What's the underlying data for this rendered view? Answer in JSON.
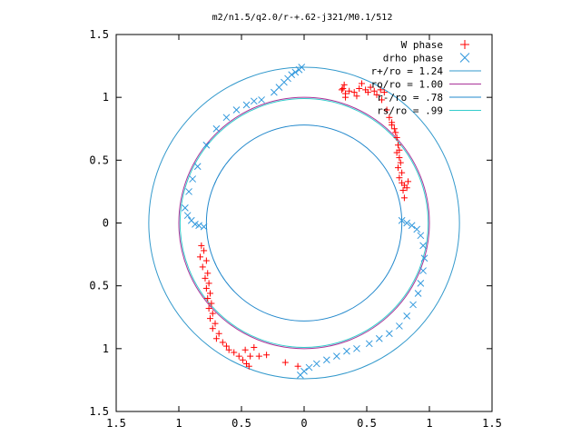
{
  "chart_data": {
    "type": "scatter",
    "title": "m2/n1.5/q2.0/r-+.62-j321/M0.1/512",
    "xlim": [
      -1.5,
      1.5
    ],
    "ylim": [
      -1.5,
      1.5
    ],
    "x_ticks": [
      {
        "value": -1.5,
        "label": "1.5"
      },
      {
        "value": -1.0,
        "label": "1"
      },
      {
        "value": -0.5,
        "label": "0.5"
      },
      {
        "value": 0.0,
        "label": "0"
      },
      {
        "value": 0.5,
        "label": "0.5"
      },
      {
        "value": 1.0,
        "label": "1"
      },
      {
        "value": 1.5,
        "label": "1.5"
      }
    ],
    "y_ticks": [
      {
        "value": 1.5,
        "label": "1.5"
      },
      {
        "value": 1.0,
        "label": "1"
      },
      {
        "value": 0.5,
        "label": "0.5"
      },
      {
        "value": 0.0,
        "label": "0"
      },
      {
        "value": -0.5,
        "label": "0.5"
      },
      {
        "value": -1.0,
        "label": "1"
      },
      {
        "value": -1.5,
        "label": "1.5"
      }
    ],
    "grid": false,
    "legend_position": "top-right",
    "legend": [
      {
        "label": "W phase",
        "marker": "+",
        "color": "#ff0000"
      },
      {
        "label": "drho phase",
        "marker": "x",
        "color": "#3399dd"
      },
      {
        "label": "r+/ro = 1.24",
        "marker": "line",
        "color": "#3399cc"
      },
      {
        "label": "ro/ro = 1.00",
        "marker": "line",
        "color": "#aa3399"
      },
      {
        "label": "r-/ro = .78",
        "marker": "line",
        "color": "#2288cc"
      },
      {
        "label": "rs/ro = .99",
        "marker": "line",
        "color": "#33cccc"
      }
    ],
    "circles": [
      {
        "r": 1.24,
        "color": "#3399cc"
      },
      {
        "r": 1.0,
        "color": "#aa3399"
      },
      {
        "r": 0.78,
        "color": "#2288cc"
      },
      {
        "r": 0.99,
        "color": "#33cccc"
      }
    ],
    "series": [
      {
        "name": "W phase",
        "marker": "+",
        "color": "#ff0000",
        "points": [
          [
            0.31,
            1.07
          ],
          [
            0.33,
            1.03
          ],
          [
            0.32,
            1.1
          ],
          [
            0.3,
            1.06
          ],
          [
            0.33,
            1.0
          ],
          [
            0.36,
            1.05
          ],
          [
            0.4,
            1.04
          ],
          [
            0.42,
            1.01
          ],
          [
            0.44,
            1.07
          ],
          [
            0.46,
            1.11
          ],
          [
            0.49,
            1.06
          ],
          [
            0.51,
            1.04
          ],
          [
            0.53,
            1.08
          ],
          [
            0.56,
            1.05
          ],
          [
            0.58,
            1.02
          ],
          [
            0.61,
            1.06
          ],
          [
            0.64,
            1.04
          ],
          [
            0.62,
            0.98
          ],
          [
            0.66,
            0.9
          ],
          [
            0.68,
            0.84
          ],
          [
            0.7,
            0.8
          ],
          [
            0.72,
            0.75
          ],
          [
            0.73,
            0.72
          ],
          [
            0.7,
            0.78
          ],
          [
            0.74,
            0.68
          ],
          [
            0.75,
            0.62
          ],
          [
            0.76,
            0.58
          ],
          [
            0.74,
            0.56
          ],
          [
            0.76,
            0.52
          ],
          [
            0.77,
            0.48
          ],
          [
            0.75,
            0.44
          ],
          [
            0.78,
            0.4
          ],
          [
            0.76,
            0.36
          ],
          [
            0.78,
            0.32
          ],
          [
            0.8,
            0.3
          ],
          [
            0.82,
            0.28
          ],
          [
            0.79,
            0.26
          ],
          [
            0.83,
            0.33
          ],
          [
            0.8,
            0.2
          ],
          [
            -0.82,
            -0.18
          ],
          [
            -0.8,
            -0.22
          ],
          [
            -0.83,
            -0.27
          ],
          [
            -0.78,
            -0.3
          ],
          [
            -0.81,
            -0.35
          ],
          [
            -0.77,
            -0.4
          ],
          [
            -0.79,
            -0.44
          ],
          [
            -0.76,
            -0.48
          ],
          [
            -0.78,
            -0.52
          ],
          [
            -0.75,
            -0.56
          ],
          [
            -0.77,
            -0.6
          ],
          [
            -0.74,
            -0.64
          ],
          [
            -0.76,
            -0.68
          ],
          [
            -0.73,
            -0.72
          ],
          [
            -0.75,
            -0.76
          ],
          [
            -0.71,
            -0.8
          ],
          [
            -0.73,
            -0.84
          ],
          [
            -0.68,
            -0.88
          ],
          [
            -0.7,
            -0.92
          ],
          [
            -0.65,
            -0.95
          ],
          [
            -0.62,
            -0.98
          ],
          [
            -0.6,
            -1.01
          ],
          [
            -0.56,
            -1.03
          ],
          [
            -0.52,
            -1.06
          ],
          [
            -0.49,
            -1.09
          ],
          [
            -0.46,
            -1.12
          ],
          [
            -0.44,
            -1.14
          ],
          [
            -0.47,
            -1.01
          ],
          [
            -0.43,
            -1.06
          ],
          [
            -0.4,
            -0.99
          ],
          [
            -0.36,
            -1.06
          ],
          [
            -0.3,
            -1.05
          ],
          [
            -0.15,
            -1.11
          ],
          [
            -0.05,
            -1.14
          ]
        ]
      },
      {
        "name": "drho phase",
        "marker": "x",
        "color": "#3399dd",
        "points": [
          [
            -0.02,
            1.24
          ],
          [
            -0.04,
            1.22
          ],
          [
            -0.07,
            1.2
          ],
          [
            -0.1,
            1.18
          ],
          [
            -0.13,
            1.15
          ],
          [
            -0.16,
            1.12
          ],
          [
            -0.2,
            1.08
          ],
          [
            -0.24,
            1.04
          ],
          [
            -0.34,
            0.98
          ],
          [
            -0.4,
            0.97
          ],
          [
            -0.46,
            0.94
          ],
          [
            -0.54,
            0.9
          ],
          [
            -0.62,
            0.84
          ],
          [
            -0.7,
            0.75
          ],
          [
            -0.78,
            0.62
          ],
          [
            -0.85,
            0.45
          ],
          [
            -0.89,
            0.35
          ],
          [
            -0.92,
            0.25
          ],
          [
            -0.95,
            0.12
          ],
          [
            -0.93,
            0.06
          ],
          [
            -0.9,
            0.02
          ],
          [
            -0.87,
            -0.01
          ],
          [
            -0.84,
            -0.02
          ],
          [
            -0.8,
            -0.03
          ],
          [
            0.78,
            0.02
          ],
          [
            0.82,
            0.0
          ],
          [
            0.86,
            -0.02
          ],
          [
            0.9,
            -0.05
          ],
          [
            0.93,
            -0.1
          ],
          [
            0.95,
            -0.18
          ],
          [
            0.96,
            -0.28
          ],
          [
            0.95,
            -0.38
          ],
          [
            0.93,
            -0.48
          ],
          [
            0.91,
            -0.56
          ],
          [
            0.87,
            -0.65
          ],
          [
            0.82,
            -0.74
          ],
          [
            0.76,
            -0.82
          ],
          [
            0.68,
            -0.88
          ],
          [
            0.6,
            -0.92
          ],
          [
            0.52,
            -0.96
          ],
          [
            0.42,
            -1.0
          ],
          [
            0.34,
            -1.02
          ],
          [
            0.26,
            -1.06
          ],
          [
            0.18,
            -1.09
          ],
          [
            0.1,
            -1.12
          ],
          [
            0.04,
            -1.15
          ],
          [
            0.0,
            -1.18
          ],
          [
            -0.03,
            -1.21
          ]
        ]
      }
    ]
  }
}
